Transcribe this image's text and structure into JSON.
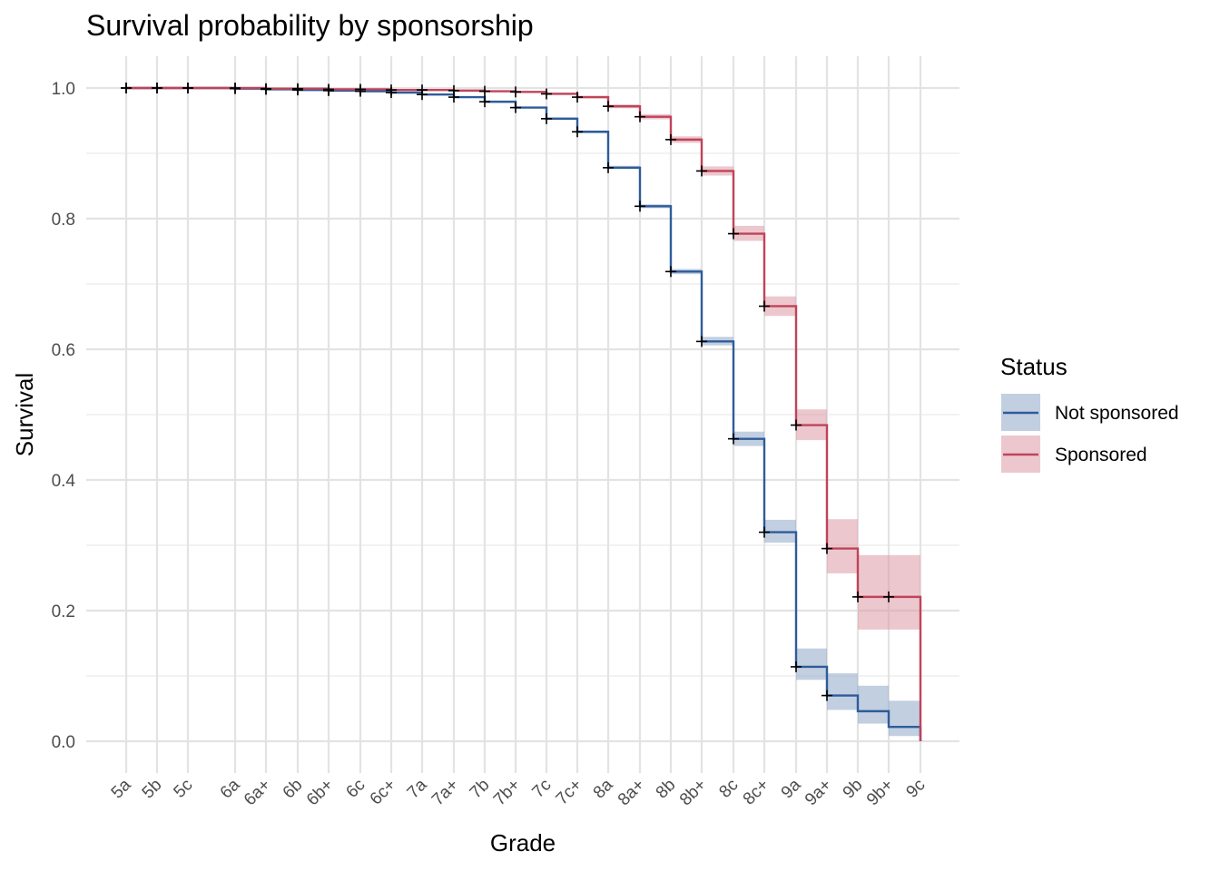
{
  "chart_data": {
    "type": "line",
    "subtype": "step survival curve with confidence bands",
    "title": "Survival probability by sponsorship",
    "xlabel": "Grade",
    "ylabel": "Survival",
    "x_categories": [
      "5a",
      "5b",
      "5c",
      "6a",
      "6a+",
      "6b",
      "6b+",
      "6c",
      "6c+",
      "7a",
      "7a+",
      "7b",
      "7b+",
      "7c",
      "7c+",
      "8a",
      "8a+",
      "8b",
      "8b+",
      "8c",
      "8c+",
      "9a",
      "9a+",
      "9b",
      "9b+",
      "9c"
    ],
    "ylim": [
      0,
      1.0
    ],
    "y_ticks": [
      "0.0",
      "0.2",
      "0.4",
      "0.6",
      "0.8",
      "1.0"
    ],
    "y_tick_values": [
      0.0,
      0.2,
      0.4,
      0.6,
      0.8,
      1.0
    ],
    "grid": true,
    "legend": {
      "title": "Status",
      "position": "right"
    },
    "series": [
      {
        "name": "Not sponsored",
        "color": "#2e5c9a",
        "band_color": "#8fa7c8",
        "steps": [
          {
            "x": "5a",
            "y": 1.0,
            "lo": 1.0,
            "hi": 1.0
          },
          {
            "x": "5b",
            "y": 1.0,
            "lo": 1.0,
            "hi": 1.0
          },
          {
            "x": "5c",
            "y": 1.0,
            "lo": 1.0,
            "hi": 1.0
          },
          {
            "x": "6a",
            "y": 0.999,
            "lo": 0.999,
            "hi": 1.0
          },
          {
            "x": "6a+",
            "y": 0.998,
            "lo": 0.997,
            "hi": 0.999
          },
          {
            "x": "6b",
            "y": 0.997,
            "lo": 0.996,
            "hi": 0.998
          },
          {
            "x": "6b+",
            "y": 0.996,
            "lo": 0.995,
            "hi": 0.997
          },
          {
            "x": "6c",
            "y": 0.995,
            "lo": 0.994,
            "hi": 0.996
          },
          {
            "x": "6c+",
            "y": 0.993,
            "lo": 0.992,
            "hi": 0.994
          },
          {
            "x": "7a",
            "y": 0.99,
            "lo": 0.989,
            "hi": 0.991
          },
          {
            "x": "7a+",
            "y": 0.986,
            "lo": 0.985,
            "hi": 0.987
          },
          {
            "x": "7b",
            "y": 0.979,
            "lo": 0.978,
            "hi": 0.98
          },
          {
            "x": "7b+",
            "y": 0.97,
            "lo": 0.969,
            "hi": 0.971
          },
          {
            "x": "7c",
            "y": 0.953,
            "lo": 0.952,
            "hi": 0.955
          },
          {
            "x": "7c+",
            "y": 0.933,
            "lo": 0.931,
            "hi": 0.935
          },
          {
            "x": "8a",
            "y": 0.878,
            "lo": 0.876,
            "hi": 0.881
          },
          {
            "x": "8a+",
            "y": 0.819,
            "lo": 0.816,
            "hi": 0.822
          },
          {
            "x": "8b",
            "y": 0.719,
            "lo": 0.715,
            "hi": 0.723
          },
          {
            "x": "8b+",
            "y": 0.612,
            "lo": 0.606,
            "hi": 0.619
          },
          {
            "x": "8c",
            "y": 0.463,
            "lo": 0.452,
            "hi": 0.474
          },
          {
            "x": "8c+",
            "y": 0.32,
            "lo": 0.304,
            "hi": 0.339
          },
          {
            "x": "9a",
            "y": 0.114,
            "lo": 0.094,
            "hi": 0.142
          },
          {
            "x": "9a+",
            "y": 0.07,
            "lo": 0.048,
            "hi": 0.104
          },
          {
            "x": "9b",
            "y": 0.046,
            "lo": 0.027,
            "hi": 0.085
          },
          {
            "x": "9b+",
            "y": 0.022,
            "lo": 0.008,
            "hi": 0.062
          },
          {
            "x": "9c",
            "y": 0.0,
            "lo": 0.0,
            "hi": 0.0
          }
        ],
        "censor_marks": [
          "5a",
          "5b",
          "5c",
          "6a",
          "6a+",
          "6b",
          "6b+",
          "6c",
          "6c+",
          "7a",
          "7a+",
          "7b",
          "7b+",
          "7c",
          "7c+",
          "8a",
          "8a+",
          "8b",
          "8b+",
          "8c",
          "8c+",
          "9a",
          "9a+"
        ]
      },
      {
        "name": "Sponsored",
        "color": "#c0435a",
        "band_color": "#dc9aa6",
        "steps": [
          {
            "x": "5a",
            "y": 1.0,
            "lo": 1.0,
            "hi": 1.0
          },
          {
            "x": "5b",
            "y": 1.0,
            "lo": 1.0,
            "hi": 1.0
          },
          {
            "x": "5c",
            "y": 1.0,
            "lo": 1.0,
            "hi": 1.0
          },
          {
            "x": "6a",
            "y": 1.0,
            "lo": 1.0,
            "hi": 1.0
          },
          {
            "x": "6a+",
            "y": 0.999,
            "lo": 0.999,
            "hi": 1.0
          },
          {
            "x": "6b",
            "y": 0.999,
            "lo": 0.998,
            "hi": 1.0
          },
          {
            "x": "6b+",
            "y": 0.998,
            "lo": 0.997,
            "hi": 0.999
          },
          {
            "x": "6c",
            "y": 0.998,
            "lo": 0.997,
            "hi": 0.999
          },
          {
            "x": "6c+",
            "y": 0.997,
            "lo": 0.996,
            "hi": 0.998
          },
          {
            "x": "7a",
            "y": 0.997,
            "lo": 0.996,
            "hi": 0.998
          },
          {
            "x": "7a+",
            "y": 0.996,
            "lo": 0.995,
            "hi": 0.997
          },
          {
            "x": "7b",
            "y": 0.995,
            "lo": 0.994,
            "hi": 0.996
          },
          {
            "x": "7b+",
            "y": 0.994,
            "lo": 0.993,
            "hi": 0.995
          },
          {
            "x": "7c",
            "y": 0.991,
            "lo": 0.99,
            "hi": 0.993
          },
          {
            "x": "7c+",
            "y": 0.986,
            "lo": 0.984,
            "hi": 0.988
          },
          {
            "x": "8a",
            "y": 0.972,
            "lo": 0.969,
            "hi": 0.975
          },
          {
            "x": "8a+",
            "y": 0.956,
            "lo": 0.952,
            "hi": 0.96
          },
          {
            "x": "8b",
            "y": 0.921,
            "lo": 0.916,
            "hi": 0.926
          },
          {
            "x": "8b+",
            "y": 0.873,
            "lo": 0.866,
            "hi": 0.88
          },
          {
            "x": "8c",
            "y": 0.777,
            "lo": 0.766,
            "hi": 0.789
          },
          {
            "x": "8c+",
            "y": 0.666,
            "lo": 0.651,
            "hi": 0.681
          },
          {
            "x": "9a",
            "y": 0.484,
            "lo": 0.461,
            "hi": 0.508
          },
          {
            "x": "9a+",
            "y": 0.295,
            "lo": 0.257,
            "hi": 0.34
          },
          {
            "x": "9b",
            "y": 0.221,
            "lo": 0.171,
            "hi": 0.285
          },
          {
            "x": "9b+",
            "y": 0.221,
            "lo": 0.171,
            "hi": 0.285
          },
          {
            "x": "9c",
            "y": 0.0,
            "lo": 0.0,
            "hi": 0.0
          }
        ],
        "censor_marks": [
          "5a",
          "5b",
          "5c",
          "6a",
          "6a+",
          "6b",
          "6b+",
          "6c",
          "6c+",
          "7a",
          "7a+",
          "7b",
          "7b+",
          "7c",
          "7c+",
          "8a",
          "8a+",
          "8b",
          "8b+",
          "8c",
          "8c+",
          "9a",
          "9a+",
          "9b",
          "9b+"
        ]
      }
    ]
  }
}
